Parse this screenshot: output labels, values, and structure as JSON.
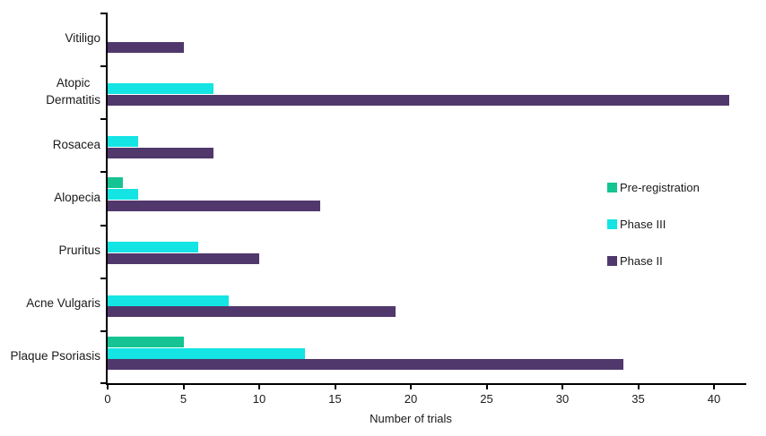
{
  "chart_data": {
    "type": "bar",
    "orientation": "horizontal",
    "title": "",
    "xlabel": "Number of trials",
    "ylabel": "",
    "categories": [
      "Vitiligo",
      "Atopic\nDermatitis",
      "Rosacea",
      "Alopecia",
      "Pruritus",
      "Acne Vulgaris",
      "Plaque Psoriasis"
    ],
    "series": [
      {
        "name": "Pre-registration",
        "color": "#15c492",
        "values": [
          0,
          0,
          0,
          1,
          0,
          0,
          5
        ]
      },
      {
        "name": "Phase III",
        "color": "#14e4e4",
        "values": [
          0,
          7,
          2,
          2,
          6,
          8,
          13
        ]
      },
      {
        "name": "Phase II",
        "color": "#51386c",
        "values": [
          5,
          41,
          7,
          14,
          10,
          19,
          34
        ]
      }
    ],
    "xticks": [
      0,
      5,
      10,
      15,
      20,
      25,
      30,
      35,
      40
    ],
    "xlim": [
      0,
      42
    ],
    "grid": false,
    "legend_position": "right-middle",
    "axis_color": "#000000",
    "text_color": "#1a1a1a",
    "background_color": "#ffffff"
  }
}
